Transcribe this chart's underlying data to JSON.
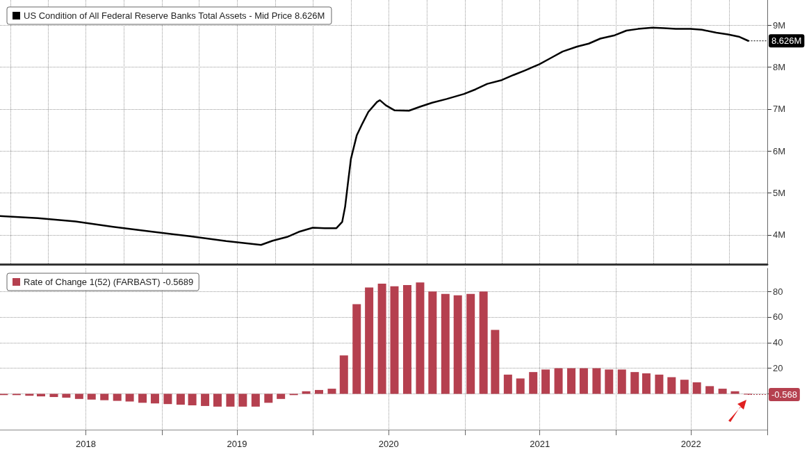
{
  "chart_data": [
    {
      "type": "line",
      "xlim": [
        "2017-12-06",
        "2023-01-01"
      ],
      "ylim": [
        3.3,
        9.6
      ],
      "xticks": [
        {
          "value": "2018-01-01",
          "label": null
        },
        {
          "value": "2018-04-01",
          "label": null
        },
        {
          "value": "2018-07-01",
          "label": null
        },
        {
          "value": "2018-10-01",
          "label": null
        },
        {
          "value": "2019-01-01",
          "label": null
        },
        {
          "value": "2019-04-01",
          "label": null
        },
        {
          "value": "2019-07-01",
          "label": null
        },
        {
          "value": "2019-10-01",
          "label": null
        },
        {
          "value": "2020-01-01",
          "label": null
        },
        {
          "value": "2020-04-01",
          "label": null
        },
        {
          "value": "2020-07-01",
          "label": null
        },
        {
          "value": "2020-10-01",
          "label": null
        },
        {
          "value": "2021-01-01",
          "label": null
        },
        {
          "value": "2021-04-01",
          "label": null
        },
        {
          "value": "2021-07-01",
          "label": null
        },
        {
          "value": "2021-10-01",
          "label": null
        },
        {
          "value": "2022-01-01",
          "label": null
        },
        {
          "value": "2022-04-01",
          "label": null
        },
        {
          "value": "2022-07-01",
          "label": null
        },
        {
          "value": "2022-10-01",
          "label": null
        },
        {
          "value": "2023-01-01",
          "label": null
        }
      ],
      "yticks": [
        {
          "value": 4,
          "label": "4M"
        },
        {
          "value": 5,
          "label": "5M"
        },
        {
          "value": 6,
          "label": "6M"
        },
        {
          "value": 7,
          "label": "7M"
        },
        {
          "value": 8,
          "label": "8M"
        },
        {
          "value": 9,
          "label": "9M"
        }
      ],
      "tick_labels": "y",
      "grid": true,
      "legend": "top left",
      "x": [
        "2017-12-06",
        "2018-03-07",
        "2018-06-06",
        "2018-09-05",
        "2018-12-05",
        "2019-03-06",
        "2019-06-05",
        "2019-08-28",
        "2019-09-25",
        "2019-10-30",
        "2019-11-27",
        "2019-12-31",
        "2020-01-29",
        "2020-02-26",
        "2020-03-11",
        "2020-03-18",
        "2020-03-25",
        "2020-04-01",
        "2020-04-15",
        "2020-04-29",
        "2020-05-13",
        "2020-06-03",
        "2020-06-10",
        "2020-06-24",
        "2020-07-15",
        "2020-08-19",
        "2020-09-16",
        "2020-10-14",
        "2020-11-18",
        "2020-12-30",
        "2021-01-27",
        "2021-02-24",
        "2021-03-31",
        "2021-04-28",
        "2021-05-26",
        "2021-06-30",
        "2021-07-28",
        "2021-08-25",
        "2021-09-29",
        "2021-10-27",
        "2021-11-24",
        "2021-12-29",
        "2022-01-26",
        "2022-02-23",
        "2022-03-30",
        "2022-04-27",
        "2022-05-25",
        "2022-06-29",
        "2022-07-27",
        "2022-08-31",
        "2022-09-28",
        "2022-10-26",
        "2022-11-16"
      ],
      "series": [
        {
          "name": "US Condition of All Federal Reserve Banks Total Assets - Mid Price 8.626M",
          "color": "#000000",
          "values": [
            4.45,
            4.4,
            4.32,
            4.19,
            4.08,
            3.97,
            3.85,
            3.76,
            3.86,
            3.95,
            4.07,
            4.17,
            4.16,
            4.16,
            4.31,
            4.67,
            5.25,
            5.81,
            6.37,
            6.66,
            6.93,
            7.17,
            7.21,
            7.09,
            6.97,
            6.96,
            7.06,
            7.15,
            7.24,
            7.36,
            7.47,
            7.6,
            7.69,
            7.81,
            7.92,
            8.07,
            8.22,
            8.37,
            8.49,
            8.56,
            8.68,
            8.76,
            8.87,
            8.91,
            8.94,
            8.93,
            8.91,
            8.91,
            8.89,
            8.82,
            8.78,
            8.72,
            8.626
          ]
        }
      ],
      "annotations": [
        {
          "text": "8.626M",
          "x": "2022-11-16",
          "y": 8.626
        }
      ]
    },
    {
      "type": "bar",
      "xlim": [
        "2017-12-06",
        "2023-01-01"
      ],
      "ylim": [
        -28,
        98
      ],
      "xticks": [
        {
          "value": "2018-07-01",
          "label": "2018"
        },
        {
          "value": "2019-01-01",
          "label": null
        },
        {
          "value": "2019-07-01",
          "label": "2019"
        },
        {
          "value": "2020-01-01",
          "label": null
        },
        {
          "value": "2020-07-01",
          "label": "2020"
        },
        {
          "value": "2021-01-01",
          "label": null
        },
        {
          "value": "2021-07-01",
          "label": "2021"
        },
        {
          "value": "2022-01-01",
          "label": null
        },
        {
          "value": "2022-07-01",
          "label": "2022"
        },
        {
          "value": "2023-01-01",
          "label": null
        }
      ],
      "yticks": [
        {
          "value": 0,
          "label": null
        },
        20,
        40,
        60,
        80
      ],
      "grid": true,
      "legend": "top left",
      "x": [
        "2017-12-15",
        "2018-01-15",
        "2018-02-15",
        "2018-03-15",
        "2018-04-15",
        "2018-05-15",
        "2018-06-15",
        "2018-07-15",
        "2018-08-15",
        "2018-09-15",
        "2018-10-15",
        "2018-11-15",
        "2018-12-15",
        "2019-01-15",
        "2019-02-15",
        "2019-03-15",
        "2019-04-15",
        "2019-05-15",
        "2019-06-15",
        "2019-07-15",
        "2019-08-15",
        "2019-09-15",
        "2019-10-15",
        "2019-11-15",
        "2019-12-15",
        "2020-01-15",
        "2020-02-15",
        "2020-03-15",
        "2020-04-15",
        "2020-05-15",
        "2020-06-15",
        "2020-07-15",
        "2020-08-15",
        "2020-09-15",
        "2020-10-15",
        "2020-11-15",
        "2020-12-15",
        "2021-01-15",
        "2021-02-15",
        "2021-03-15",
        "2021-04-15",
        "2021-05-15",
        "2021-06-15",
        "2021-07-15",
        "2021-08-15",
        "2021-09-15",
        "2021-10-15",
        "2021-11-15",
        "2021-12-15",
        "2022-01-15",
        "2022-02-15",
        "2022-03-15",
        "2022-04-15",
        "2022-05-15",
        "2022-06-15",
        "2022-07-15",
        "2022-08-15",
        "2022-09-15",
        "2022-10-15",
        "2022-11-15"
      ],
      "series": [
        {
          "name": "Rate of Change 1(52) (FARBAST) -0.5689",
          "color": "#b5404f",
          "values": [
            -1,
            -1,
            -1.5,
            -2,
            -2.5,
            -3,
            -4,
            -4.5,
            -5,
            -5.5,
            -6,
            -7,
            -7.5,
            -8,
            -8.5,
            -9,
            -9.5,
            -10,
            -10,
            -10,
            -10,
            -7,
            -4,
            -1,
            2,
            3,
            4,
            30,
            70,
            83,
            86,
            84,
            85,
            87,
            80,
            78,
            77,
            78,
            80,
            50,
            15,
            12,
            17,
            19,
            20,
            20,
            20,
            20,
            19,
            19,
            17,
            16,
            15,
            13,
            11,
            9,
            6,
            4,
            2,
            -0.5689
          ]
        }
      ],
      "annotations": [
        {
          "text": "-0.568",
          "x": "2022-11-15",
          "y": -0.568
        }
      ]
    }
  ]
}
